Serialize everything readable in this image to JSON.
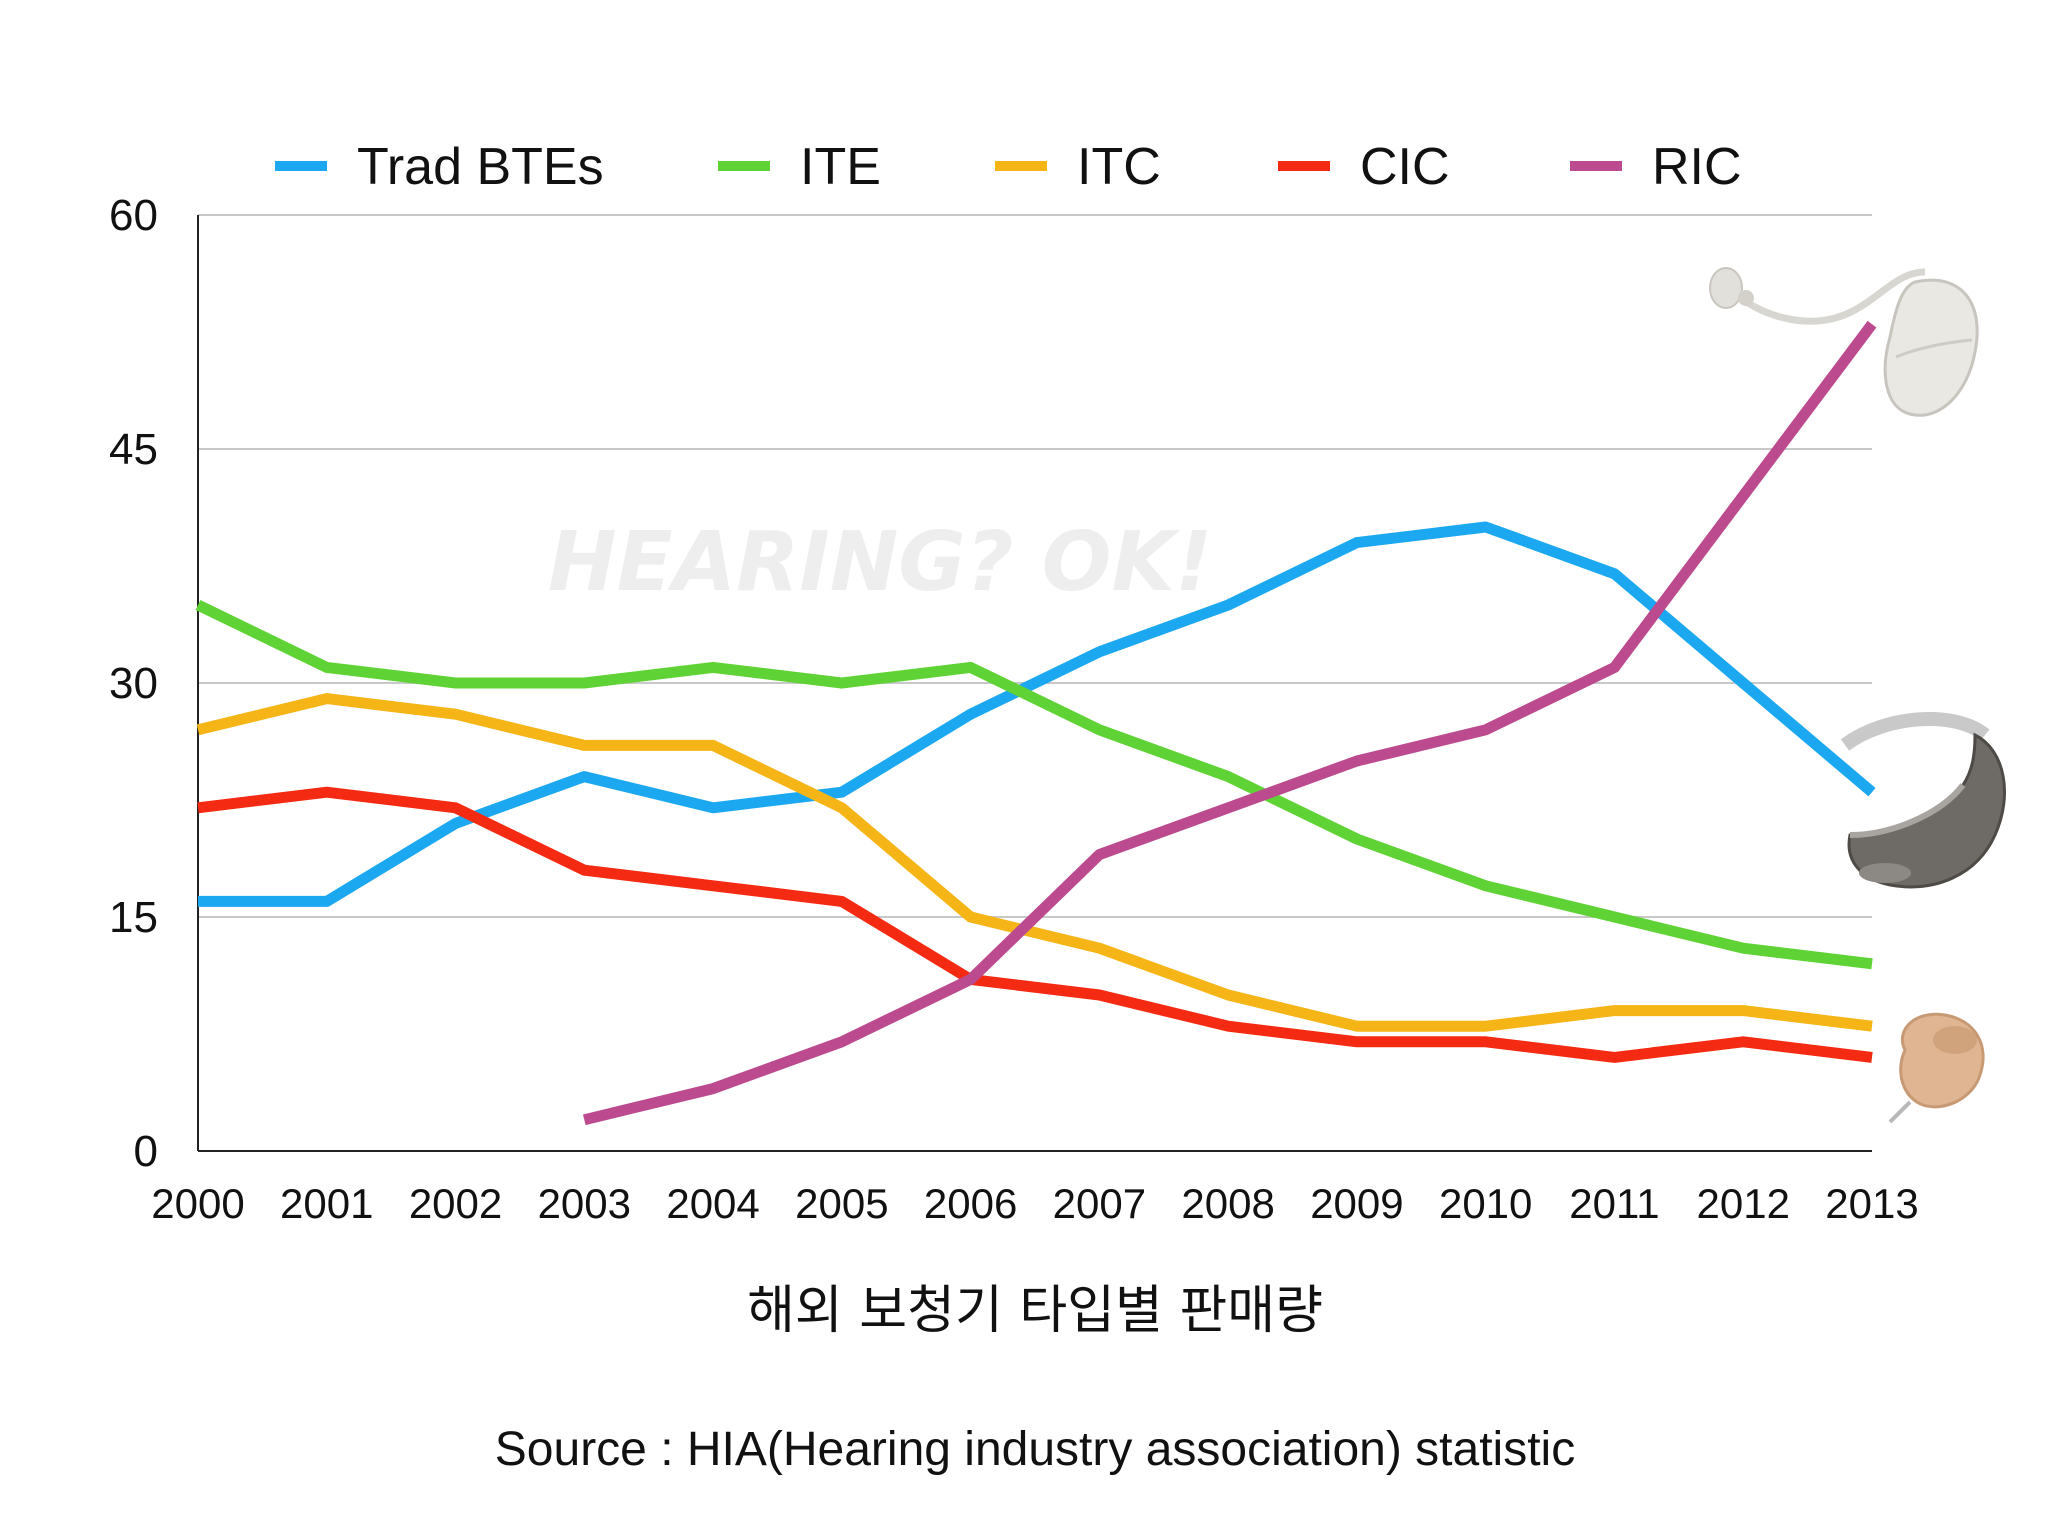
{
  "chart_data": {
    "type": "line",
    "title": "해외 보청기 타입별 판매량",
    "source": "Source : HIA(Hearing industry association) statistic",
    "watermark": "HEARING? OK!",
    "categories": [
      "2000",
      "2001",
      "2002",
      "2003",
      "2004",
      "2005",
      "2006",
      "2007",
      "2008",
      "2009",
      "2010",
      "2011",
      "2012",
      "2013"
    ],
    "ylim": [
      0,
      60
    ],
    "yticks": [
      "0",
      "15",
      "30",
      "45",
      "60"
    ],
    "grid": true,
    "legend_position": "top",
    "series": [
      {
        "name": "Trad BTEs",
        "color": "#1BA8F0",
        "values": [
          16,
          16,
          21,
          24,
          22,
          23,
          28,
          32,
          35,
          39,
          40,
          37,
          30,
          23
        ]
      },
      {
        "name": "ITE",
        "color": "#5FD335",
        "values": [
          35,
          31,
          30,
          30,
          31,
          30,
          31,
          27,
          24,
          20,
          17,
          15,
          13,
          12
        ]
      },
      {
        "name": "ITC",
        "color": "#F6B517",
        "values": [
          27,
          29,
          28,
          26,
          26,
          22,
          15,
          13,
          10,
          8,
          8,
          9,
          9,
          8
        ]
      },
      {
        "name": "CIC",
        "color": "#F42A12",
        "values": [
          22,
          23,
          22,
          18,
          17,
          16,
          11,
          10,
          8,
          7,
          7,
          6,
          7,
          6
        ]
      },
      {
        "name": "RIC",
        "color": "#BC4A8E",
        "values": [
          null,
          null,
          null,
          2,
          4,
          7,
          11,
          19,
          22,
          25,
          27,
          31,
          42,
          53
        ]
      }
    ],
    "product_images": [
      "ric-hearing-aid-icon",
      "bte-hearing-aid-icon",
      "cic-hearing-aid-icon"
    ]
  }
}
